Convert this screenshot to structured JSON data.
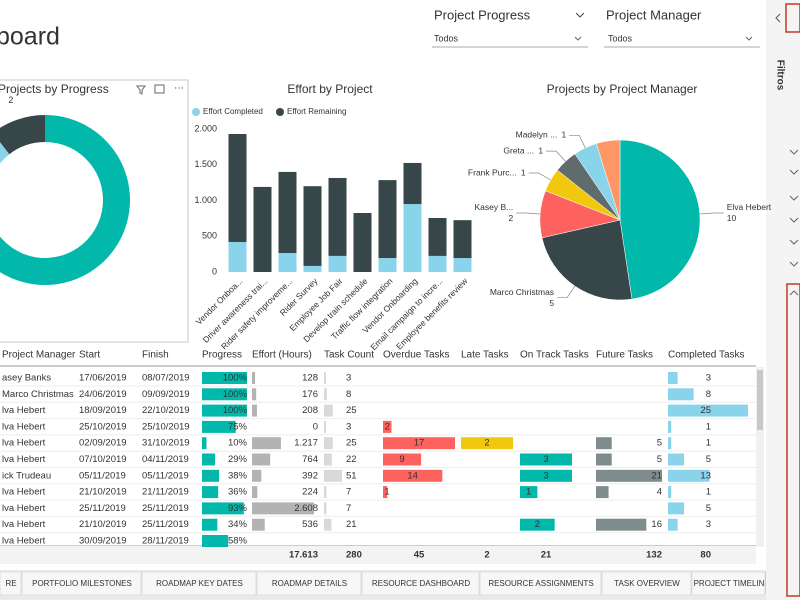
{
  "header": {
    "title": "board"
  },
  "slicers": [
    {
      "label": "Project Progress",
      "value": "Todos"
    },
    {
      "label": "Project Manager",
      "value": "Todos"
    }
  ],
  "charts": [
    {
      "type": "donut",
      "title": "Projects by Progress",
      "values": [
        16,
        1,
        2
      ],
      "colors": [
        "#01b8aa",
        "#8ad4eb",
        "#374649"
      ]
    },
    {
      "type": "stacked-bar",
      "title": "Effort by Project",
      "categories": [
        "Vendor Onboa...",
        "Driver awareness trai...",
        "Rider safety improveme...",
        "Rider Survey",
        "Employee Job Fair",
        "Develop train schedule",
        "Traffic flow integration",
        "Vendor Onboarding",
        "Email campaign to incre...",
        "Employee benefits review"
      ],
      "series": [
        {
          "name": "Effort Completed",
          "color": "#8ad4eb",
          "values": [
            420,
            0,
            265,
            85,
            225,
            0,
            195,
            950,
            225,
            195
          ]
        },
        {
          "name": "Effort Remaining",
          "color": "#374649",
          "values": [
            1510,
            1190,
            1135,
            1115,
            1090,
            825,
            1090,
            575,
            530,
            530
          ]
        }
      ],
      "ylim": [
        0,
        2000
      ],
      "yticks": [
        0,
        500,
        {
          "value": 1000,
          "label": "1.000"
        },
        {
          "value": 1500,
          "label": "1.500"
        },
        {
          "value": 2000,
          "label": "2.000"
        }
      ]
    },
    {
      "type": "pie",
      "title": "Projects by Project Manager",
      "categories": [
        "Elva Hebert",
        "Marco Christmas",
        "Kasey B...",
        "Frank Purc...",
        "Greta ...",
        "Madelyn ...",
        null
      ],
      "values": [
        10,
        5,
        2,
        1,
        1,
        1,
        1
      ],
      "colors": [
        "#01b8aa",
        "#374649",
        "#fd625e",
        "#f2c80f",
        "#5f6b6d",
        "#8ad4eb",
        "#fe9666"
      ]
    }
  ],
  "table": {
    "columns": [
      "Project Manager",
      "Start",
      "Finish",
      "Progress",
      "Effort (Hours)",
      "Task Count",
      "Overdue Tasks",
      "Late Tasks",
      "On Track Tasks",
      "Future Tasks",
      "Completed Tasks"
    ],
    "rows": [
      [
        "asey Banks",
        "17/06/2019",
        "08/07/2019",
        {
          "value": 100,
          "label": "100%"
        },
        128,
        3,
        null,
        null,
        null,
        null,
        3
      ],
      [
        "Marco Christmas",
        "24/06/2019",
        "09/09/2019",
        {
          "value": 100,
          "label": "100%"
        },
        176,
        8,
        null,
        null,
        null,
        null,
        8
      ],
      [
        "lva Hebert",
        "18/09/2019",
        "22/10/2019",
        {
          "value": 100,
          "label": "100%"
        },
        208,
        25,
        null,
        null,
        null,
        null,
        25
      ],
      [
        "lva Hebert",
        "25/10/2019",
        "25/10/2019",
        {
          "value": 75,
          "label": "75%"
        },
        0,
        3,
        2,
        null,
        null,
        null,
        1
      ],
      [
        "lva Hebert",
        "02/09/2019",
        "31/10/2019",
        {
          "value": 10,
          "label": "10%"
        },
        {
          "value": 1217,
          "label": "1.217"
        },
        25,
        17,
        2,
        null,
        5,
        1
      ],
      [
        "lva Hebert",
        "07/10/2019",
        "04/11/2019",
        {
          "value": 29,
          "label": "29%"
        },
        764,
        22,
        9,
        null,
        3,
        5,
        5
      ],
      [
        "ick Trudeau",
        "05/11/2019",
        "05/11/2019",
        {
          "value": 38,
          "label": "38%"
        },
        392,
        51,
        14,
        null,
        3,
        21,
        13
      ],
      [
        "lva Hebert",
        "21/10/2019",
        "21/11/2019",
        {
          "value": 36,
          "label": "36%"
        },
        224,
        7,
        1,
        null,
        1,
        4,
        1
      ],
      [
        "lva Hebert",
        "25/11/2019",
        "25/11/2019",
        {
          "value": 93,
          "label": "93%"
        },
        {
          "value": 2608,
          "label": "2.608"
        },
        7,
        null,
        null,
        null,
        null,
        5
      ],
      [
        "lva Hebert",
        "21/10/2019",
        "25/11/2019",
        {
          "value": 34,
          "label": "34%"
        },
        536,
        21,
        null,
        null,
        2,
        16,
        3
      ],
      [
        "lva Hebert",
        "30/09/2019",
        "28/11/2019",
        {
          "value": 58,
          "label": "58%"
        },
        null,
        null,
        null,
        null,
        null,
        null,
        null
      ]
    ],
    "totals": [
      null,
      null,
      null,
      null,
      {
        "value": 17613,
        "label": "17.613"
      },
      280,
      45,
      2,
      21,
      132,
      80
    ]
  },
  "tabs": [
    "RE",
    "PORTFOLIO MILESTONES",
    "ROADMAP KEY DATES",
    "ROADMAP DETAILS",
    "RESOURCE DASHBOARD",
    "RESOURCE ASSIGNMENTS",
    "TASK OVERVIEW",
    "PROJECT TIMELIN"
  ],
  "pane": {
    "title": "Filtros"
  }
}
